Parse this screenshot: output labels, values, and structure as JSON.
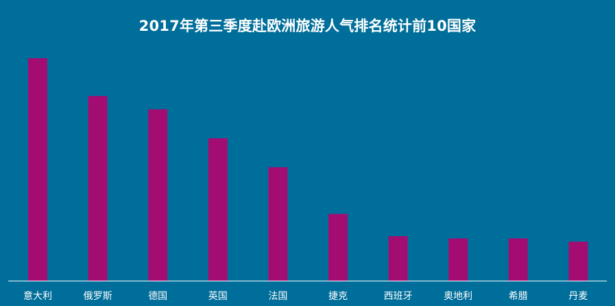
{
  "chart_data": {
    "type": "bar",
    "title": "2017年第三季度赴欧洲旅游人气排名统计前10国家",
    "xlabel": "",
    "ylabel": "",
    "categories": [
      "意大利",
      "俄罗斯",
      "德国",
      "英国",
      "法国",
      "捷克",
      "西班牙",
      "奥地利",
      "希腊",
      "丹麦"
    ],
    "values": [
      100,
      83,
      77,
      64,
      51,
      30,
      20,
      19,
      19,
      17.5
    ],
    "ylim": [
      0,
      100
    ],
    "grid": false,
    "legend": "none",
    "colors": {
      "background": "#006e9a",
      "bar": "#a30d72",
      "axis": "#ffffff",
      "text": "#ffffff"
    }
  }
}
